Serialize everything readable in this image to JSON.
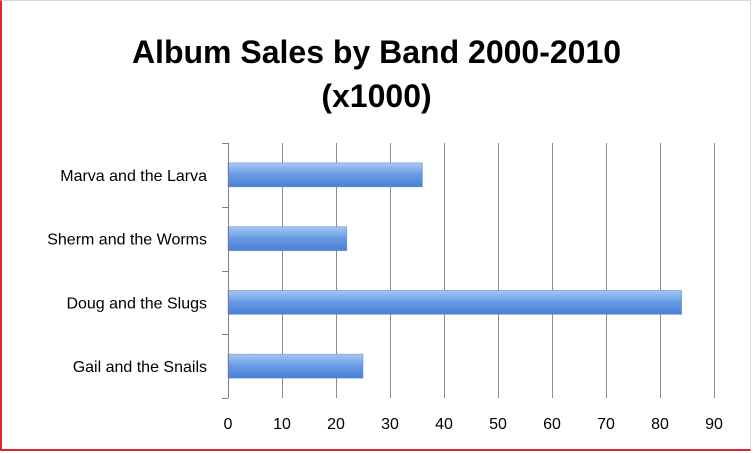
{
  "chart_data": {
    "type": "bar",
    "orientation": "horizontal",
    "title_lines": [
      "Album Sales by Band 2000-2010",
      "(x1000)"
    ],
    "categories": [
      "Marva and the Larva",
      "Sherm and the Worms",
      "Doug and the Slugs",
      "Gail and the Snails"
    ],
    "values": [
      36,
      22,
      84,
      25
    ],
    "xlim": [
      0,
      90
    ],
    "xticks": [
      0,
      10,
      20,
      30,
      40,
      50,
      60,
      70,
      80,
      90
    ],
    "xlabel": "",
    "ylabel": "",
    "grid": "vertical",
    "legend": "none",
    "colors": {
      "bar_light": "#a9c8f3",
      "bar_mid": "#6b9de6",
      "bar_dark": "#4a7fd6",
      "grid": "#8c8c8c",
      "axis": "#7f7f7f",
      "frame_accent": "#e0262d"
    }
  }
}
